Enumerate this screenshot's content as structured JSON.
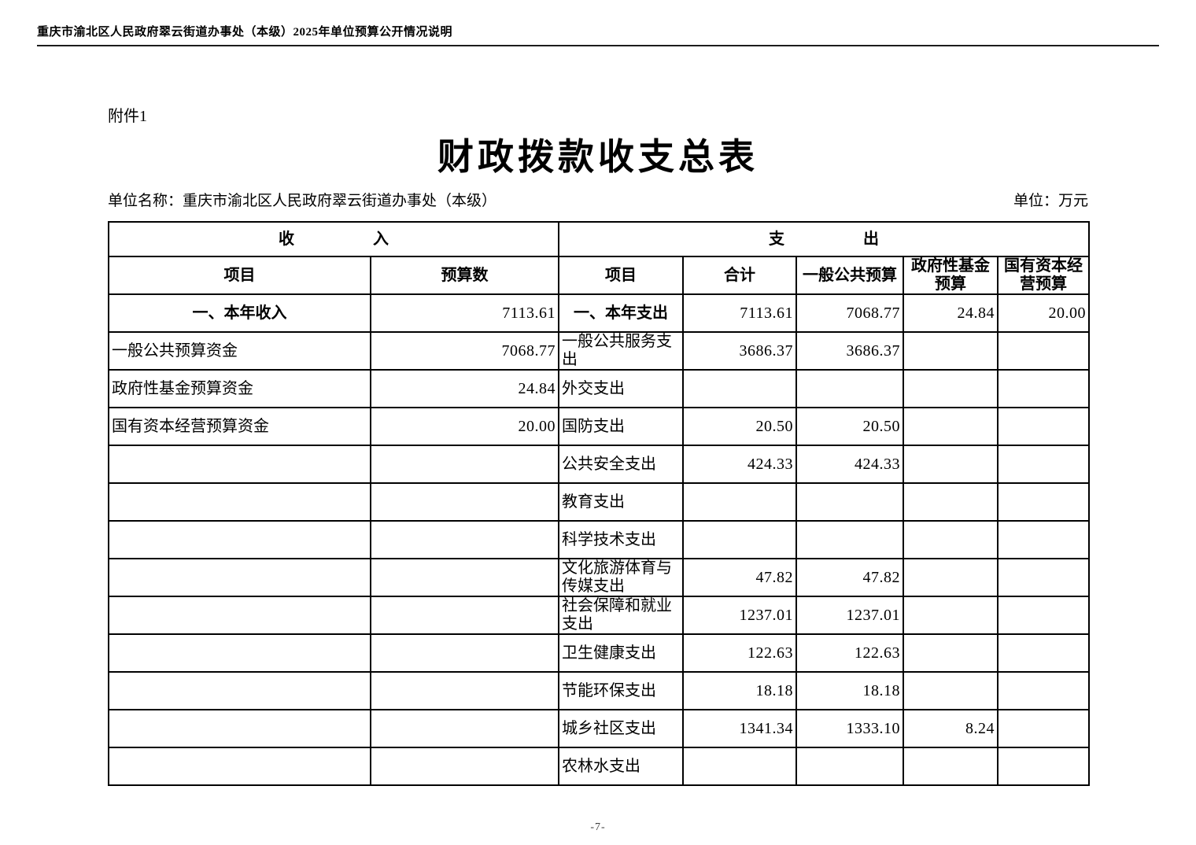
{
  "page": {
    "doc_header": "重庆市渝北区人民政府翠云街道办事处（本级）2025年单位预算公开情况说明",
    "attachment": "附件1",
    "title": "财政拨款收支总表",
    "unit_name": "单位名称：重庆市渝北区人民政府翠云街道办事处（本级）",
    "unit_of_measure": "单位：万元",
    "page_number": "-7-"
  },
  "table": {
    "income_section_header": "收　　　　　入",
    "expenditure_section_header": "支　　　　　出",
    "column_headers": {
      "income_item": "项目",
      "income_budget": "预算数",
      "exp_item": "项目",
      "exp_total": "合计",
      "exp_general_public": "一般公共预算",
      "exp_gov_fund": "政府性基金预算",
      "exp_state_capital": "国有资本经营预算"
    },
    "rows": [
      {
        "income_item": "一、本年收入",
        "income_value": "7113.61",
        "exp_item": "一、本年支出",
        "total": "7113.61",
        "general": "7068.77",
        "fund": "24.84",
        "capital": "20.00"
      },
      {
        "income_item": "一般公共预算资金",
        "income_value": "7068.77",
        "exp_item": "一般公共服务支出",
        "total": "3686.37",
        "general": "3686.37",
        "fund": "",
        "capital": ""
      },
      {
        "income_item": "政府性基金预算资金",
        "income_value": "24.84",
        "exp_item": "外交支出",
        "total": "",
        "general": "",
        "fund": "",
        "capital": ""
      },
      {
        "income_item": "国有资本经营预算资金",
        "income_value": "20.00",
        "exp_item": "国防支出",
        "total": "20.50",
        "general": "20.50",
        "fund": "",
        "capital": ""
      },
      {
        "income_item": "",
        "income_value": "",
        "exp_item": "公共安全支出",
        "total": "424.33",
        "general": "424.33",
        "fund": "",
        "capital": ""
      },
      {
        "income_item": "",
        "income_value": "",
        "exp_item": "教育支出",
        "total": "",
        "general": "",
        "fund": "",
        "capital": ""
      },
      {
        "income_item": "",
        "income_value": "",
        "exp_item": "科学技术支出",
        "total": "",
        "general": "",
        "fund": "",
        "capital": ""
      },
      {
        "income_item": "",
        "income_value": "",
        "exp_item": "文化旅游体育与传媒支出",
        "total": "47.82",
        "general": "47.82",
        "fund": "",
        "capital": ""
      },
      {
        "income_item": "",
        "income_value": "",
        "exp_item": "社会保障和就业支出",
        "total": "1237.01",
        "general": "1237.01",
        "fund": "",
        "capital": ""
      },
      {
        "income_item": "",
        "income_value": "",
        "exp_item": "卫生健康支出",
        "total": "122.63",
        "general": "122.63",
        "fund": "",
        "capital": ""
      },
      {
        "income_item": "",
        "income_value": "",
        "exp_item": "节能环保支出",
        "total": "18.18",
        "general": "18.18",
        "fund": "",
        "capital": ""
      },
      {
        "income_item": "",
        "income_value": "",
        "exp_item": "城乡社区支出",
        "total": "1341.34",
        "general": "1333.10",
        "fund": "8.24",
        "capital": ""
      },
      {
        "income_item": "",
        "income_value": "",
        "exp_item": "农林水支出",
        "total": "",
        "general": "",
        "fund": "",
        "capital": ""
      }
    ]
  }
}
